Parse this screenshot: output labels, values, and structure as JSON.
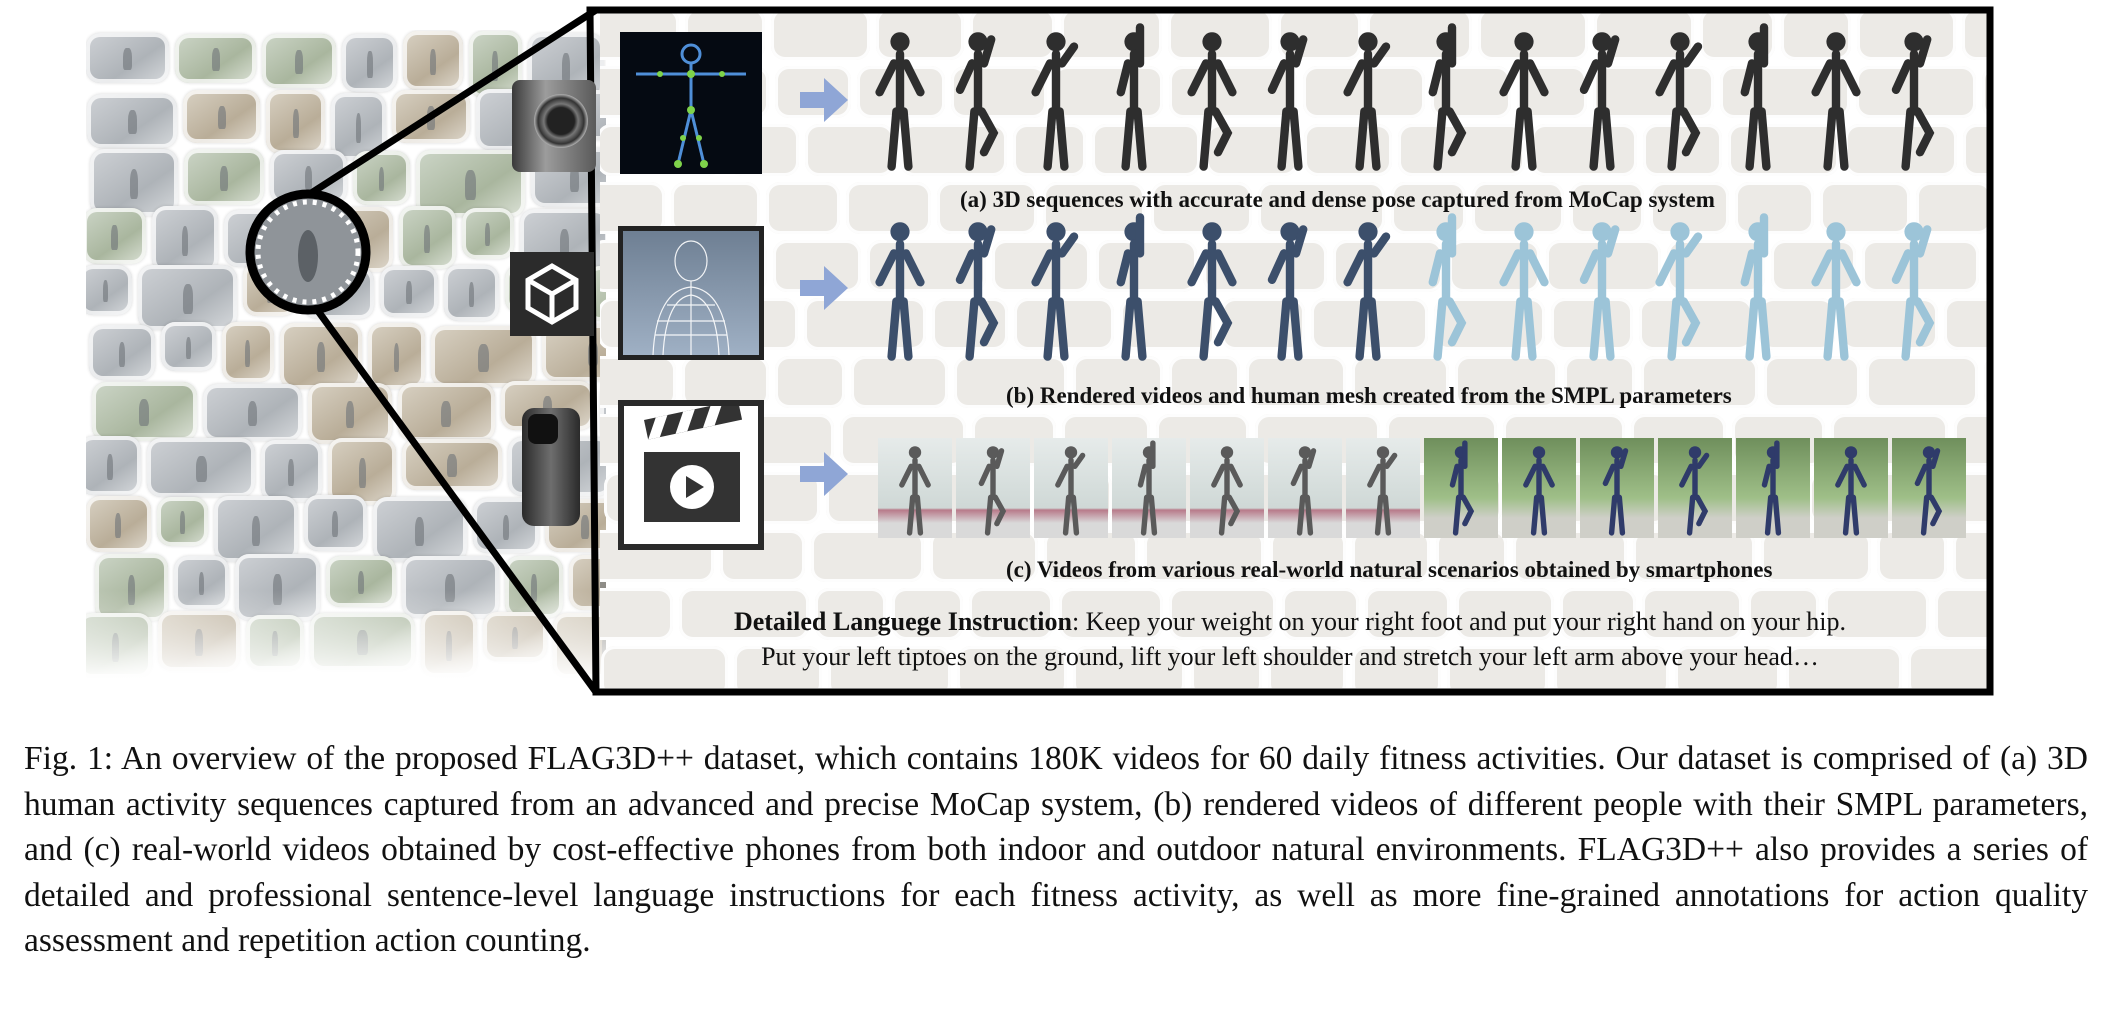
{
  "figure": {
    "row_a_caption": "(a) 3D sequences with accurate and dense pose captured from MoCap system",
    "row_b_caption": "(b) Rendered videos and human mesh created from the SMPL parameters",
    "row_c_caption": "(c) Videos from various real-world natural scenarios obtained by smartphones",
    "instruction_label": "Detailed Languege Instruction",
    "instruction_text_1": ": Keep your weight on your right foot and put your right hand on your hip.",
    "instruction_text_2": "Put your left tiptoes on the ground, lift your left shoulder and stretch your left arm above your head…",
    "icons": [
      "mocap-camera-icon",
      "unity-logo-icon",
      "smartphone-icon",
      "skeleton-icon",
      "wireframe-mesh-icon",
      "video-clapper-icon",
      "arrow-right-icon"
    ],
    "colors": {
      "arrow": "#8fa6d6",
      "frame": "#000000",
      "mocap_bg": "#050a12"
    }
  },
  "caption": {
    "text": "Fig. 1: An overview of the proposed FLAG3D++ dataset, which contains 180K videos for 60 daily fitness activities. Our dataset is comprised of (a) 3D human activity sequences captured from an advanced and precise MoCap system, (b) rendered videos of different people with their SMPL parameters, and (c) real-world videos obtained by cost-effective phones from both indoor and outdoor natural environments. FLAG3D++ also provides a series of detailed and professional sentence-level language instructions for each fitness activity, as well as more fine-grained annotations for action quality assessment and repetition action counting."
  }
}
